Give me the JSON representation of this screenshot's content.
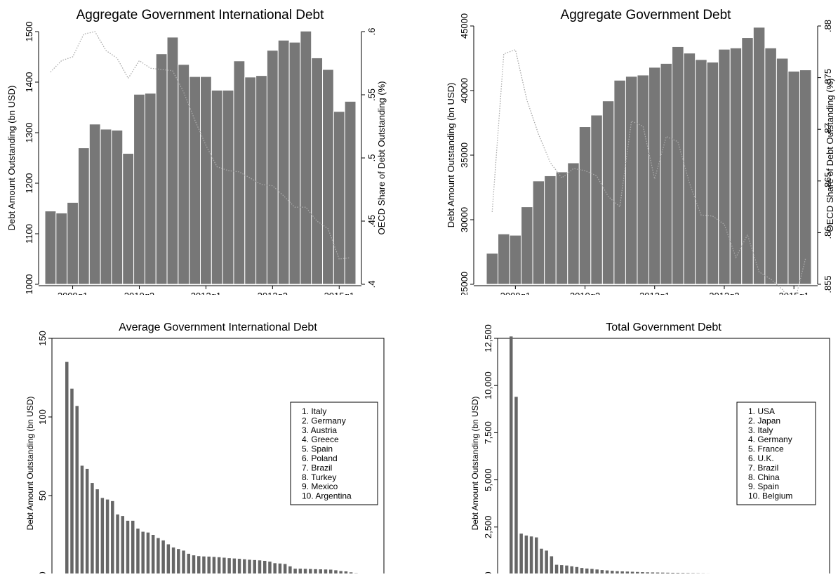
{
  "chart_data": [
    {
      "type": "bar",
      "title": "Aggregate Government International Debt",
      "ylabel": "Debt Amount Outstanding (bn USD)",
      "y2label": "OECD Share of Debt Outstanding (%)",
      "xlabel": "",
      "ylim": [
        1000,
        1500
      ],
      "y2lim": [
        0.4,
        0.6
      ],
      "yticks": [
        1000,
        1100,
        1200,
        1300,
        1400,
        1500
      ],
      "y2ticks": [
        0.4,
        0.45,
        0.5,
        0.55,
        0.6
      ],
      "y2ticklabels": [
        ".4",
        ".45",
        ".5",
        ".55",
        ".6"
      ],
      "xticklabels": [
        "2009q1",
        "2010q3",
        "2012q1",
        "2013q3",
        "2015q1"
      ],
      "xtick_index": [
        2,
        8,
        14,
        20,
        26
      ],
      "bar_color": "#777777",
      "series": [
        {
          "kind": "bar",
          "values": [
            1145,
            1141,
            1162,
            1270,
            1317,
            1307,
            1305,
            1259,
            1376,
            1378,
            1456,
            1489,
            1435,
            1411,
            1411,
            1384,
            1384,
            1442,
            1410,
            1413,
            1463,
            1483,
            1479,
            1501,
            1448,
            1425,
            1342,
            1362
          ]
        },
        {
          "kind": "line",
          "style": "dotted",
          "axis": "right",
          "values": [
            0.568,
            0.577,
            0.58,
            0.598,
            0.6,
            0.585,
            0.579,
            0.563,
            0.577,
            0.571,
            0.57,
            0.569,
            0.552,
            0.53,
            0.51,
            0.493,
            0.49,
            0.489,
            0.484,
            0.479,
            0.478,
            0.47,
            0.461,
            0.461,
            0.45,
            0.444,
            0.42,
            0.421
          ]
        }
      ]
    },
    {
      "type": "bar",
      "title": "Aggregate Government Debt",
      "ylabel": "Debt Amount Outstanding (bn USD)",
      "y2label": "OECD Share of Debt Outstanding (%)",
      "xlabel": "",
      "ylim": [
        25000,
        45000
      ],
      "y2lim": [
        0.855,
        0.88
      ],
      "yticks": [
        25000,
        30000,
        35000,
        40000,
        45000
      ],
      "y2ticks": [
        0.855,
        0.86,
        0.865,
        0.87,
        0.875,
        0.88
      ],
      "y2ticklabels": [
        ".855",
        ".86",
        ".865",
        ".87",
        ".875",
        ".88"
      ],
      "xticklabels": [
        "2009q1",
        "2010q3",
        "2012q1",
        "2013q3",
        "2015q1"
      ],
      "xtick_index": [
        2,
        8,
        14,
        20,
        26
      ],
      "bar_color": "#777777",
      "series": [
        {
          "kind": "bar",
          "values": [
            27400,
            28900,
            28800,
            31000,
            33000,
            33400,
            33700,
            34400,
            37200,
            38100,
            39200,
            40800,
            41100,
            41200,
            41800,
            42100,
            43400,
            42900,
            42400,
            42200,
            43200,
            43300,
            44100,
            44900,
            43300,
            42500,
            41500,
            41600
          ]
        },
        {
          "kind": "line",
          "style": "dotted",
          "axis": "right",
          "values": [
            0.862,
            0.8773,
            0.8777,
            0.8728,
            0.8695,
            0.8668,
            0.8653,
            0.8662,
            0.866,
            0.8655,
            0.8635,
            0.8625,
            0.8708,
            0.8703,
            0.8652,
            0.8693,
            0.8688,
            0.8648,
            0.8617,
            0.8616,
            0.8608,
            0.8576,
            0.8598,
            0.8562,
            0.8555,
            0.8545,
            0.853,
            0.8575
          ]
        }
      ]
    },
    {
      "type": "bar",
      "title": "Average Government International Debt",
      "ylabel": "Debt Amount Outstanding (bn USD)",
      "xlabel": "",
      "ylim": [
        0,
        150
      ],
      "yticks": [
        0,
        50,
        100,
        150
      ],
      "yticklabels": [
        "0",
        "50",
        "100",
        "150"
      ],
      "bar_color": "#666666",
      "legend": [
        "1.  Italy",
        "2.  Germany",
        "3.  Austria",
        "4.  Greece",
        "5.  Spain",
        "6.  Poland",
        "7.  Brazil",
        "8.  Turkey",
        "9.  Mexico",
        "10.  Argentina"
      ],
      "legend_position": "right",
      "values": [
        135,
        118,
        107,
        69,
        67,
        58,
        54,
        48.5,
        47.5,
        46.5,
        38,
        37,
        34,
        34,
        29,
        27,
        26.5,
        25,
        23,
        21.5,
        19,
        17,
        16,
        15,
        13,
        12,
        11.5,
        11.3,
        11.2,
        11,
        10.8,
        10.5,
        10.2,
        10,
        9.8,
        9.5,
        9.2,
        9,
        8.8,
        8.5,
        8,
        7,
        6.8,
        6.5,
        5,
        3.5,
        3.5,
        3.4,
        3.3,
        3.2,
        3.1,
        3,
        2.9,
        2.5,
        2,
        1.8,
        1.2,
        0.6
      ]
    },
    {
      "type": "bar",
      "title": "Total Government Debt",
      "ylabel": "Debt Amount Outstanding (bn USD)",
      "xlabel": "",
      "ylim": [
        0,
        12500
      ],
      "yticks": [
        0,
        2500,
        5000,
        7500,
        10000,
        12500
      ],
      "yticklabels": [
        "0",
        "2,500",
        "5,000",
        "7,500",
        "10,000",
        "12,500"
      ],
      "bar_color": "#666666",
      "legend": [
        "1.  USA",
        "2.  Japan",
        "3.  Italy",
        "4.  Germany",
        "5.  France",
        "6.  U.K.",
        "7.  Brazil",
        "8.  China",
        "9.  Spain",
        "10.  Belgium"
      ],
      "legend_position": "right",
      "values": [
        12600,
        9400,
        2150,
        2050,
        2000,
        1950,
        1350,
        1250,
        950,
        500,
        480,
        460,
        420,
        380,
        330,
        300,
        280,
        250,
        220,
        200,
        180,
        160,
        150,
        140,
        130,
        120,
        110,
        100,
        95,
        90,
        85,
        80,
        75,
        70,
        65,
        60,
        55,
        50,
        45,
        40,
        35,
        30,
        28,
        25,
        22,
        20,
        18,
        15,
        12,
        10,
        8,
        6,
        4
      ]
    }
  ]
}
